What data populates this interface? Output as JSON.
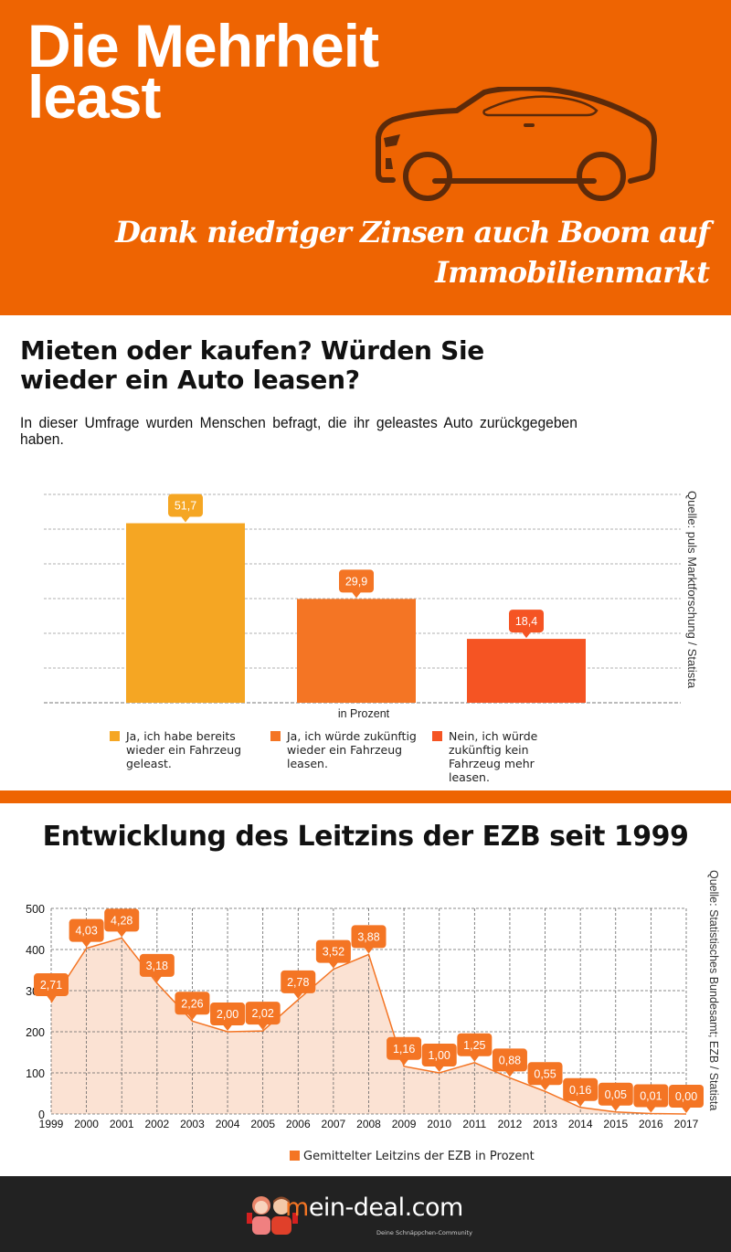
{
  "hero": {
    "title_line1": "Die Mehrheit",
    "title_line2": "least",
    "subtitle_line1": "Dank niedriger Zinsen auch Boom auf",
    "subtitle_line2": "Immobilienmarkt",
    "icon": "car-icon",
    "background_color": "#EE6402"
  },
  "survey": {
    "title": "Mieten oder kaufen? Würden Sie wieder ein Auto leasen?",
    "description": "In dieser Umfrage wurden Menschen befragt, die ihr geleastes Auto zurückgegeben haben.",
    "source": "Quelle: puls Marktforschung / Statista"
  },
  "interest": {
    "title": "Entwicklung des Leitzins der EZB seit 1999",
    "source": "Quelle: Statistisches Bundesamt; EZB / Statista"
  },
  "footer": {
    "logo_prefix": "m",
    "logo_rest": "ein-deal.com",
    "tagline": "Deine Schnäppchen-Community",
    "logo_icon": "mascot-couple-icon"
  },
  "chart_data": [
    {
      "type": "bar",
      "title": "Mieten oder kaufen? Würden Sie wieder ein Auto leasen?",
      "xlabel": "in Prozent",
      "ylabel": "",
      "ylim": [
        0,
        60
      ],
      "grid": true,
      "categories": [
        "Ja, ich habe bereits wieder ein Fahrzeug geleast.",
        "Ja, ich würde zukünftig wieder ein Fahrzeug leasen.",
        "Nein, ich würde zukünftig kein Fahrzeug mehr leasen."
      ],
      "values": [
        51.7,
        29.9,
        18.4
      ],
      "value_labels": [
        "51,7",
        "29,9",
        "18,4"
      ],
      "colors": [
        "#F5A623",
        "#F47524",
        "#F55423"
      ],
      "legend_position": "bottom"
    },
    {
      "type": "area",
      "title": "Entwicklung des Leitzins der EZB seit 1999",
      "xlabel": "",
      "ylabel": "",
      "ylim": [
        0,
        500
      ],
      "yticks": [
        0,
        100,
        200,
        300,
        400,
        500
      ],
      "grid": true,
      "x": [
        "1999",
        "2000",
        "2001",
        "2002",
        "2003",
        "2004",
        "2005",
        "2006",
        "2007",
        "2008",
        "2009",
        "2010",
        "2011",
        "2012",
        "2013",
        "2014",
        "2015",
        "2016",
        "2017"
      ],
      "series": [
        {
          "name": "Gemittelter Leitzins der EZB in Prozent",
          "values": [
            2.71,
            4.03,
            4.28,
            3.18,
            2.26,
            2.0,
            2.02,
            2.78,
            3.52,
            3.88,
            1.16,
            1.0,
            1.25,
            0.88,
            0.55,
            0.16,
            0.05,
            0.01,
            0.0
          ],
          "value_labels": [
            "2,71",
            "4,03",
            "4,28",
            "3,18",
            "2,26",
            "2,00",
            "2,02",
            "2,78",
            "3,52",
            "3,88",
            "1,16",
            "1,00",
            "1,25",
            "0,88",
            "0,55",
            "0,16",
            "0,05",
            "0,01",
            "0,00"
          ],
          "color": "#F47524",
          "fill": "#FBE2D3"
        }
      ],
      "axis_scale_note": "y-axis tick values are 100x the percentage",
      "legend_position": "bottom"
    }
  ]
}
